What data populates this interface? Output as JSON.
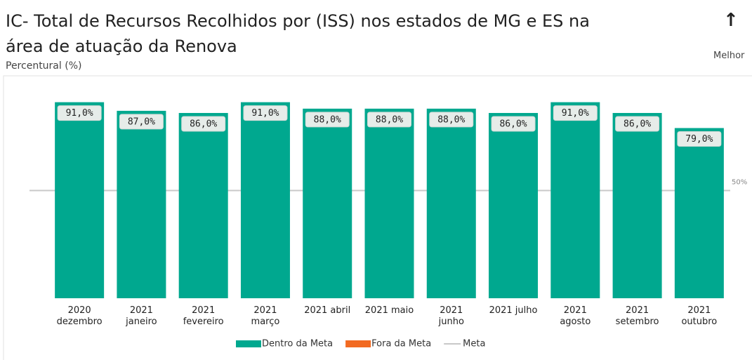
{
  "chart_data": {
    "type": "bar",
    "title": "IC- Total de Recursos Recolhidos por (ISS) nos estados de MG e ES na área de atuação da Renova",
    "subtitle": "Percentural (%)",
    "direction_arrow": "↑",
    "direction_label": "Melhor",
    "categories": [
      "2020\ndezembro",
      "2021\njaneiro",
      "2021\nfevereiro",
      "2021\nmarço",
      "2021 abril",
      "2021 maio",
      "2021\njunho",
      "2021 julho",
      "2021\nagosto",
      "2021\nsetembro",
      "2021\noutubro"
    ],
    "series": [
      {
        "name": "Dentro da Meta",
        "color": "#00a88f",
        "values": [
          91,
          87,
          86,
          91,
          88,
          88,
          88,
          86,
          91,
          86,
          79
        ],
        "value_labels": [
          "91,0%",
          "87,0%",
          "86,0%",
          "91,0%",
          "88,0%",
          "88,0%",
          "88,0%",
          "86,0%",
          "91,0%",
          "86,0%",
          "79,0%"
        ]
      }
    ],
    "legend_only_series": [
      {
        "name": "Fora da Meta",
        "color": "#f26a21"
      }
    ],
    "meta": {
      "name": "Meta",
      "value": 50,
      "label": "50%",
      "color": "#c8c8c8"
    },
    "ylim": [
      0,
      100
    ]
  }
}
